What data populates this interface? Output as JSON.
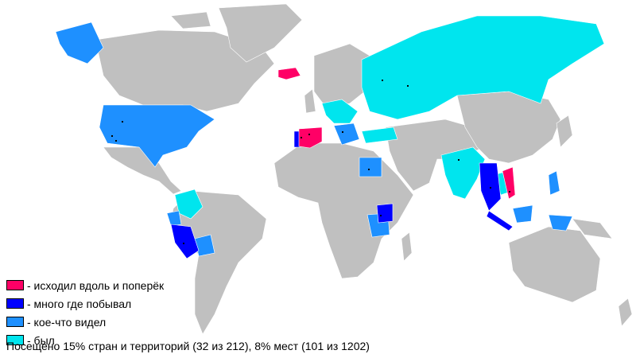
{
  "colors": {
    "ocean": "#ffffff",
    "unvisited": "#c0c0c0",
    "border": "#ffffff",
    "dot": "#000000"
  },
  "legend": [
    {
      "label": "- исходил вдоль и поперёк",
      "color": "#ff0066"
    },
    {
      "label": "- много где побывал",
      "color": "#0000ff"
    },
    {
      "label": "- кое-что видел",
      "color": "#1e90ff"
    },
    {
      "label": "- был",
      "color": "#00e5ee"
    }
  ],
  "summary": "Посещено 15% стран и территорий (32 из 212), 8% мест (101 из 1202)"
}
